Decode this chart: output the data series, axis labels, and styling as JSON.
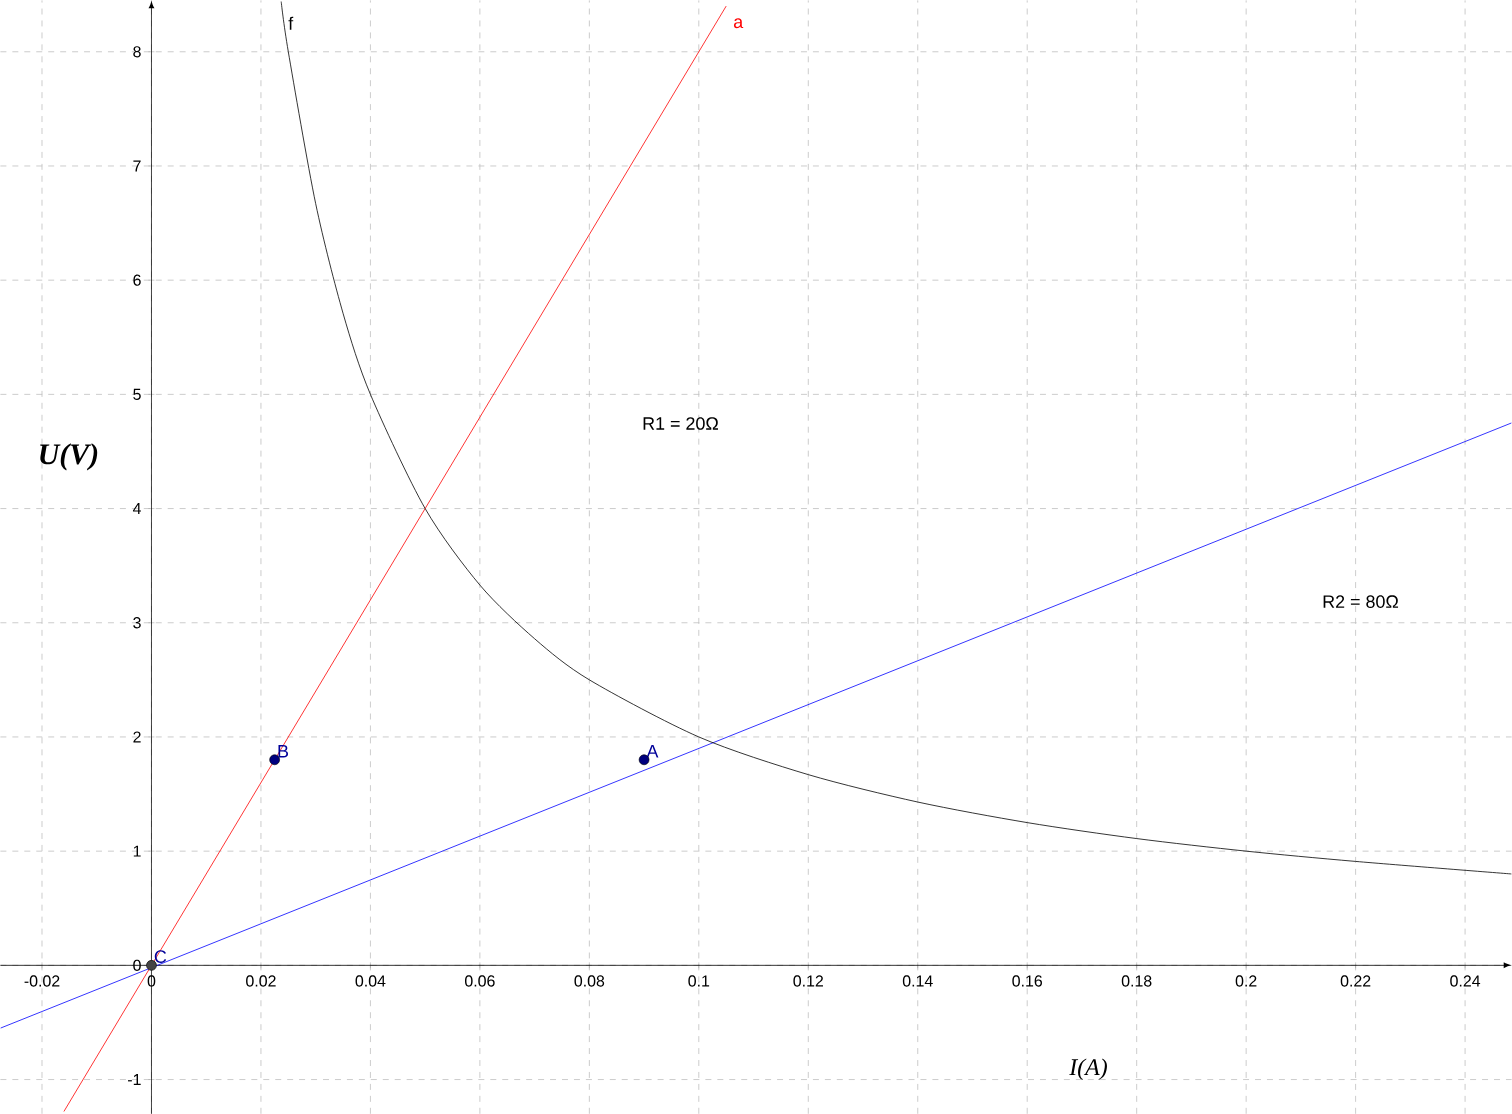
{
  "chart_data": {
    "type": "line",
    "xlabel": "I(A)",
    "ylabel": "U(V)",
    "xlim": [
      -0.0276,
      0.2485
    ],
    "ylim": [
      -1.3,
      8.45
    ],
    "xticks": [
      -0.02,
      0,
      0.02,
      0.04,
      0.06,
      0.08,
      0.1,
      0.12,
      0.14,
      0.16,
      0.18,
      0.2,
      0.22,
      0.24
    ],
    "yticks": [
      -1,
      0,
      1,
      2,
      3,
      4,
      5,
      6,
      7,
      8
    ],
    "grid": true,
    "marker": "none",
    "line_style": "solid",
    "series": [
      {
        "name": "a",
        "color": "#ff0000",
        "x": [
          -0.016,
          0.105
        ],
        "values": [
          -1.28,
          8.4
        ]
      },
      {
        "color": "#0000ff",
        "x": [
          -0.0276,
          0.2485
        ],
        "values": [
          -0.55,
          4.75
        ]
      },
      {
        "name": "f",
        "color": "#000000",
        "x": [
          0.0237,
          0.025,
          0.03,
          0.035,
          0.04,
          0.05,
          0.06,
          0.07,
          0.08,
          0.1,
          0.12,
          0.14,
          0.16,
          0.18,
          0.2,
          0.22,
          0.2485
        ],
        "values": [
          8.44,
          8.0,
          6.67,
          5.71,
          5.0,
          4.0,
          3.33,
          2.86,
          2.5,
          2.0,
          1.67,
          1.43,
          1.25,
          1.11,
          1.0,
          0.91,
          0.8
        ]
      },
      {
        "type": "scatter",
        "marker": "circle",
        "colors": [
          "#00007f",
          "#00007f",
          "#444444"
        ],
        "x": [
          0.09,
          0.0225,
          0
        ],
        "values": [
          1.8,
          1.8,
          0
        ]
      }
    ],
    "annotations": [
      {
        "text": "A",
        "x": 0.09,
        "y": 1.8
      },
      {
        "text": "B",
        "x": 0.0225,
        "y": 1.8
      },
      {
        "text": "C",
        "x": 0,
        "y": 0
      },
      "R1 = 20Ω",
      "R2 = 80Ω"
    ]
  }
}
